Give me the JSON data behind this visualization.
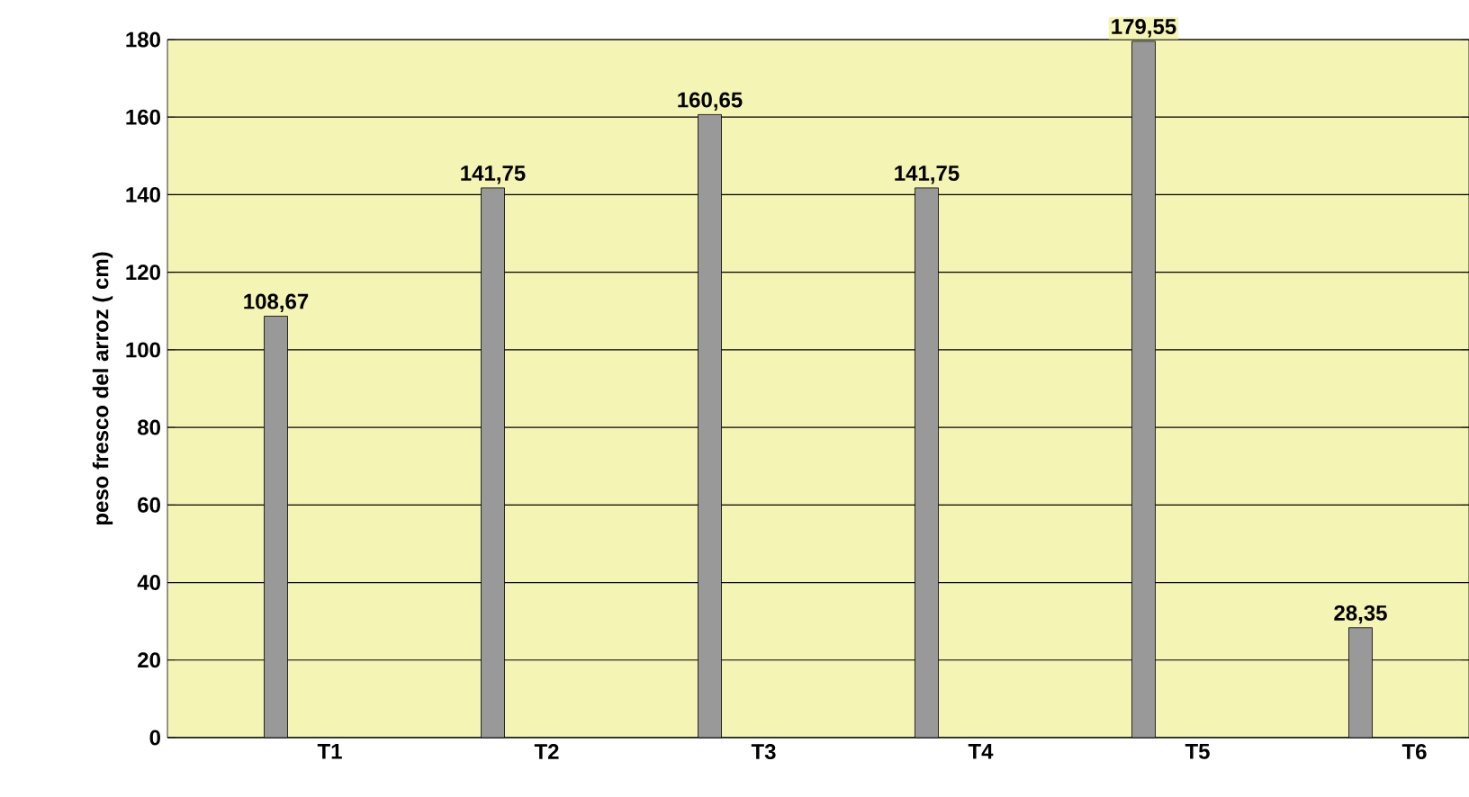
{
  "chart_data": {
    "type": "bar",
    "ylabel": "peso fresco del arroz ( cm)",
    "categories": [
      "T1",
      "T2",
      "T3",
      "T4",
      "T5",
      "T6"
    ],
    "values": [
      108.67,
      141.75,
      160.65,
      141.75,
      179.55,
      28.35
    ],
    "value_labels": [
      "108,67",
      "141,75",
      "160,65",
      "141,75",
      "179,55",
      "28,35"
    ],
    "color": "#999999",
    "ylim": [
      0,
      180
    ],
    "yticks": [
      0,
      20,
      40,
      60,
      80,
      100,
      120,
      140,
      160,
      180
    ],
    "grid": "y"
  }
}
